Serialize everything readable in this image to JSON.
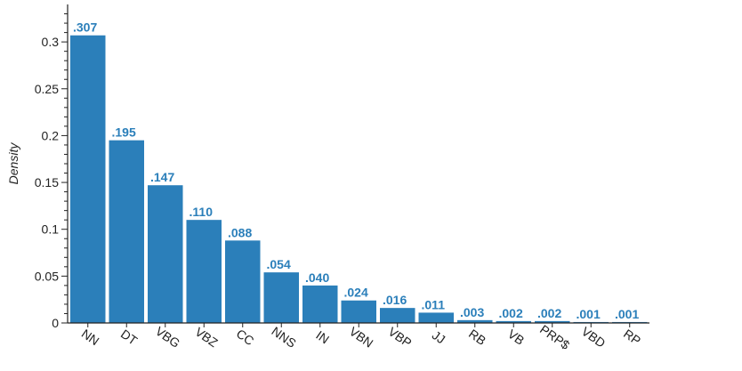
{
  "chart_data": {
    "type": "bar",
    "categories": [
      "NN",
      "DT",
      "VBG",
      "VBZ",
      "CC",
      "NNS",
      "IN",
      "VBN",
      "VBP",
      "JJ",
      "RB",
      "VB",
      "PRP$",
      "VBD",
      "RP"
    ],
    "values": [
      0.307,
      0.195,
      0.147,
      0.11,
      0.088,
      0.054,
      0.04,
      0.024,
      0.016,
      0.011,
      0.003,
      0.002,
      0.002,
      0.001,
      0.001
    ],
    "value_labels": [
      ".307",
      ".195",
      ".147",
      ".110",
      ".088",
      ".054",
      ".040",
      ".024",
      ".016",
      ".011",
      ".003",
      ".002",
      ".002",
      ".001",
      ".001"
    ],
    "title": "",
    "xlabel": "",
    "ylabel": "Density",
    "ylim": [
      0,
      0.34
    ],
    "yticks": [
      0,
      0.05,
      0.1,
      0.15,
      0.2,
      0.25,
      0.3
    ],
    "ytick_labels": [
      "0",
      "0.05",
      "0.1",
      "0.15",
      "0.2",
      "0.25",
      "0.3"
    ],
    "grid": false,
    "legend": "none",
    "bar_color": "#2b7fba",
    "label_color": "#2b7fba",
    "axis_color": "#222222"
  }
}
